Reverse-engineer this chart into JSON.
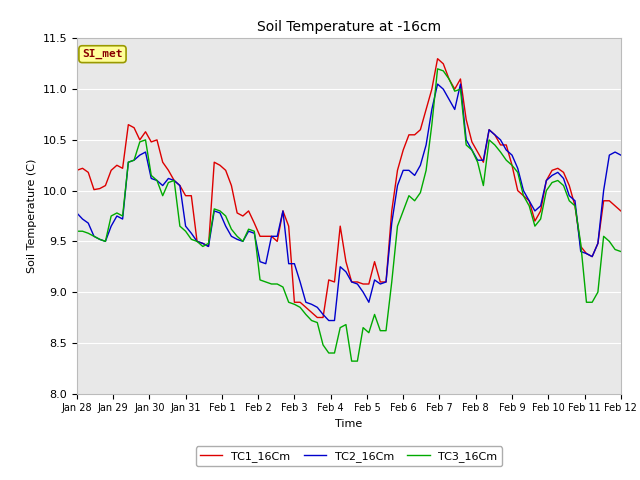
{
  "title": "Soil Temperature at -16cm",
  "xlabel": "Time",
  "ylabel": "Soil Temperature (C)",
  "ylim": [
    8.0,
    11.5
  ],
  "fig_bg_color": "#ffffff",
  "plot_bg_color": "#e8e8e8",
  "annotation_text": "SI_met",
  "annotation_bg": "#ffff99",
  "annotation_border": "#999900",
  "annotation_text_color": "#880000",
  "legend_entries": [
    "TC1_16Cm",
    "TC2_16Cm",
    "TC3_16Cm"
  ],
  "line_colors": [
    "#dd0000",
    "#0000cc",
    "#00aa00"
  ],
  "x_tick_labels": [
    "Jan 28",
    "Jan 29",
    "Jan 30",
    "Jan 31",
    "Feb 1",
    "Feb 2",
    "Feb 3",
    "Feb 4",
    "Feb 5",
    "Feb 6",
    "Feb 7",
    "Feb 8",
    "Feb 9",
    "Feb 10",
    "Feb 11",
    "Feb 12"
  ],
  "TC1_16Cm": [
    10.2,
    10.22,
    10.18,
    10.01,
    10.02,
    10.05,
    10.2,
    10.25,
    10.22,
    10.65,
    10.62,
    10.5,
    10.58,
    10.48,
    10.5,
    10.28,
    10.2,
    10.1,
    10.05,
    9.95,
    9.95,
    9.5,
    9.48,
    9.45,
    10.28,
    10.25,
    10.2,
    10.05,
    9.78,
    9.75,
    9.8,
    9.68,
    9.55,
    9.55,
    9.55,
    9.5,
    9.8,
    9.65,
    8.9,
    8.9,
    8.85,
    8.8,
    8.75,
    8.75,
    9.12,
    9.1,
    9.65,
    9.3,
    9.1,
    9.1,
    9.08,
    9.08,
    9.3,
    9.1,
    9.1,
    9.8,
    10.2,
    10.4,
    10.55,
    10.55,
    10.6,
    10.8,
    11.0,
    11.3,
    11.25,
    11.1,
    11.0,
    11.1,
    10.7,
    10.48,
    10.38,
    10.28,
    10.6,
    10.55,
    10.45,
    10.45,
    10.25,
    10.0,
    9.95,
    9.9,
    9.7,
    9.8,
    10.1,
    10.2,
    10.22,
    10.18,
    10.05,
    9.85,
    9.45,
    9.38,
    9.35,
    9.48,
    9.9,
    9.9,
    9.85,
    9.8
  ],
  "TC2_16Cm": [
    9.78,
    9.72,
    9.68,
    9.55,
    9.52,
    9.5,
    9.65,
    9.75,
    9.72,
    10.28,
    10.3,
    10.35,
    10.38,
    10.12,
    10.1,
    10.05,
    10.12,
    10.1,
    10.05,
    9.65,
    9.58,
    9.5,
    9.48,
    9.45,
    9.8,
    9.78,
    9.65,
    9.55,
    9.52,
    9.5,
    9.6,
    9.58,
    9.3,
    9.28,
    9.55,
    9.55,
    9.8,
    9.28,
    9.28,
    9.1,
    8.9,
    8.88,
    8.85,
    8.78,
    8.72,
    8.72,
    9.25,
    9.2,
    9.1,
    9.08,
    9.0,
    8.9,
    9.12,
    9.08,
    9.1,
    9.68,
    10.05,
    10.2,
    10.2,
    10.15,
    10.25,
    10.45,
    10.8,
    11.05,
    11.0,
    10.9,
    10.8,
    11.05,
    10.5,
    10.4,
    10.3,
    10.3,
    10.6,
    10.55,
    10.5,
    10.4,
    10.35,
    10.22,
    10.0,
    9.9,
    9.8,
    9.85,
    10.1,
    10.15,
    10.18,
    10.12,
    9.95,
    9.9,
    9.4,
    9.38,
    9.35,
    9.48,
    10.0,
    10.35,
    10.38,
    10.35
  ],
  "TC3_16Cm": [
    9.6,
    9.6,
    9.58,
    9.55,
    9.52,
    9.5,
    9.75,
    9.78,
    9.75,
    10.28,
    10.3,
    10.48,
    10.5,
    10.15,
    10.1,
    9.95,
    10.08,
    10.1,
    9.65,
    9.6,
    9.52,
    9.5,
    9.45,
    9.48,
    9.82,
    9.8,
    9.75,
    9.62,
    9.55,
    9.5,
    9.62,
    9.6,
    9.12,
    9.1,
    9.08,
    9.08,
    9.05,
    8.9,
    8.88,
    8.85,
    8.78,
    8.72,
    8.7,
    8.48,
    8.4,
    8.4,
    8.65,
    8.68,
    8.32,
    8.32,
    8.65,
    8.6,
    8.78,
    8.62,
    8.62,
    9.1,
    9.65,
    9.8,
    9.95,
    9.9,
    9.98,
    10.2,
    10.65,
    11.2,
    11.18,
    11.1,
    10.98,
    11.0,
    10.45,
    10.4,
    10.28,
    10.05,
    10.5,
    10.45,
    10.38,
    10.3,
    10.25,
    10.18,
    9.95,
    9.85,
    9.65,
    9.72,
    10.0,
    10.08,
    10.1,
    10.05,
    9.9,
    9.85,
    9.48,
    8.9,
    8.9,
    9.0,
    9.55,
    9.5,
    9.42,
    9.4
  ]
}
